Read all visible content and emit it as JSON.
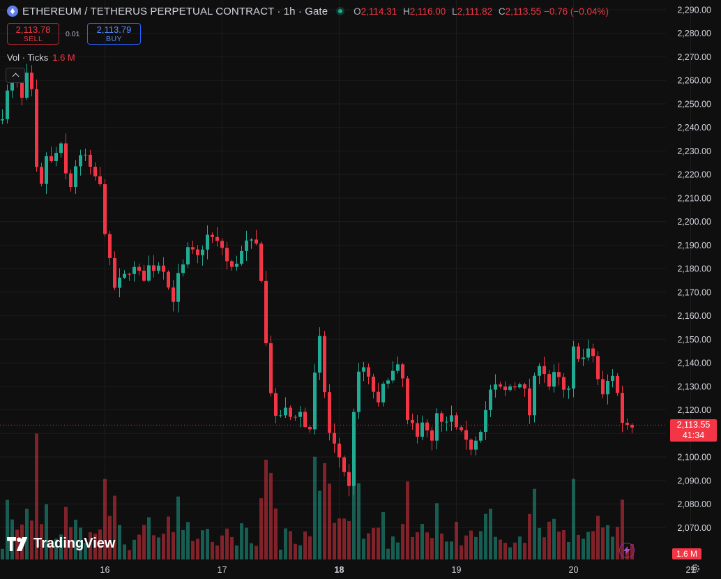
{
  "header": {
    "title": "ETHEREUM / TETHERUS PERPETUAL CONTRACT · 1h · Gate",
    "ohlc": {
      "o_label": "O",
      "o": "2,114.31",
      "h_label": "H",
      "h": "2,116.00",
      "l_label": "L",
      "l": "2,111.82",
      "c_label": "C",
      "c": "2,113.55",
      "change": "−0.76 (−0.04%)"
    }
  },
  "trade": {
    "sell_price": "2,113.78",
    "sell_label": "SELL",
    "spread": "0.01",
    "buy_price": "2,113.79",
    "buy_label": "BUY"
  },
  "volume_legend": {
    "label": "Vol · Ticks",
    "value": "1.6 M"
  },
  "price_scale": {
    "last_price": "2,113.55",
    "countdown": "41:34",
    "volume_tag": "1.6 M"
  },
  "branding": {
    "logo_text": "TradingView"
  },
  "icons": {
    "symbol": "ethereum-icon",
    "market_status": "live-dot-icon",
    "collapse": "chevron-up-icon",
    "logo": "tradingview-logo-icon",
    "quick_action": "lightning-icon",
    "settings": "gear-icon"
  },
  "colors": {
    "background": "#0f0f0f",
    "up": "#22ab94",
    "down": "#f23645",
    "grid": "#1c1c1c",
    "text": "#d1d4dc"
  },
  "chart_data": {
    "type": "candlestick",
    "interval": "1h",
    "y_axis": {
      "range": [
        2060,
        2292
      ],
      "ticks": [
        2070,
        2080,
        2090,
        2100,
        2110,
        2120,
        2130,
        2140,
        2150,
        2160,
        2170,
        2180,
        2190,
        2200,
        2210,
        2220,
        2230,
        2240,
        2250,
        2260,
        2270,
        2280,
        2290
      ],
      "tick_labels": [
        "2,070.00",
        "2,080.00",
        "2,090.00",
        "2,100.00",
        "2,110.00",
        "2,120.00",
        "2,130.00",
        "2,140.00",
        "2,150.00",
        "2,160.00",
        "2,170.00",
        "2,180.00",
        "2,190.00",
        "2,200.00",
        "2,210.00",
        "2,220.00",
        "2,230.00",
        "2,240.00",
        "2,250.00",
        "2,260.00",
        "2,270.00",
        "2,280.00",
        "2,290.00"
      ]
    },
    "x_axis": {
      "tick_labels": [
        "16",
        "17",
        "18",
        "19",
        "20",
        "21"
      ],
      "ticks_at_candle": [
        21,
        45,
        69,
        93,
        117,
        141
      ]
    },
    "last_price": 2113.55,
    "close_path": [
      [
        0,
        2245
      ],
      [
        1,
        2255
      ],
      [
        2,
        2262
      ],
      [
        3,
        2258
      ],
      [
        4,
        2252
      ],
      [
        5,
        2262
      ],
      [
        6,
        2255
      ],
      [
        7,
        2222
      ],
      [
        8,
        2215
      ],
      [
        9,
        2228
      ],
      [
        10,
        2225
      ],
      [
        11,
        2229
      ],
      [
        12,
        2232
      ],
      [
        13,
        2220
      ],
      [
        14,
        2215
      ],
      [
        15,
        2224
      ],
      [
        16,
        2227
      ],
      [
        17,
        2228
      ],
      [
        18,
        2222
      ],
      [
        19,
        2219
      ],
      [
        20,
        2215
      ],
      [
        21,
        2196
      ],
      [
        22,
        2183
      ],
      [
        23,
        2172
      ],
      [
        24,
        2175
      ],
      [
        25,
        2177
      ],
      [
        26,
        2179
      ],
      [
        27,
        2180
      ],
      [
        28,
        2178
      ],
      [
        29,
        2176
      ],
      [
        30,
        2181
      ],
      [
        31,
        2180
      ],
      [
        32,
        2182
      ],
      [
        33,
        2180
      ],
      [
        34,
        2172
      ],
      [
        35,
        2167
      ],
      [
        36,
        2177
      ],
      [
        37,
        2181
      ],
      [
        38,
        2188
      ],
      [
        39,
        2187
      ],
      [
        40,
        2185
      ],
      [
        41,
        2189
      ],
      [
        42,
        2194
      ],
      [
        43,
        2193
      ],
      [
        44,
        2191
      ],
      [
        45,
        2189
      ],
      [
        46,
        2183
      ],
      [
        47,
        2180
      ],
      [
        48,
        2183
      ],
      [
        49,
        2187
      ],
      [
        50,
        2191
      ],
      [
        51,
        2191
      ],
      [
        52,
        2190
      ],
      [
        53,
        2176
      ],
      [
        54,
        2148
      ],
      [
        55,
        2128
      ],
      [
        56,
        2116
      ],
      [
        57,
        2118
      ],
      [
        58,
        2120
      ],
      [
        59,
        2117
      ],
      [
        60,
        2118
      ],
      [
        61,
        2119
      ],
      [
        62,
        2113
      ],
      [
        63,
        2112
      ],
      [
        64,
        2135
      ],
      [
        65,
        2150
      ],
      [
        66,
        2128
      ],
      [
        67,
        2110
      ],
      [
        68,
        2105
      ],
      [
        69,
        2100
      ],
      [
        70,
        2094
      ],
      [
        71,
        2087
      ],
      [
        72,
        2120
      ],
      [
        73,
        2135
      ],
      [
        74,
        2138
      ],
      [
        75,
        2133
      ],
      [
        76,
        2128
      ],
      [
        77,
        2122
      ],
      [
        78,
        2130
      ],
      [
        79,
        2134
      ],
      [
        80,
        2136
      ],
      [
        81,
        2138
      ],
      [
        82,
        2133
      ],
      [
        83,
        2115
      ],
      [
        84,
        2113
      ],
      [
        85,
        2108
      ],
      [
        86,
        2116
      ],
      [
        87,
        2112
      ],
      [
        88,
        2106
      ],
      [
        89,
        2118
      ],
      [
        90,
        2114
      ],
      [
        91,
        2114
      ],
      [
        92,
        2117
      ],
      [
        93,
        2112
      ],
      [
        94,
        2110
      ],
      [
        95,
        2106
      ],
      [
        96,
        2104
      ],
      [
        97,
        2108
      ],
      [
        98,
        2112
      ],
      [
        99,
        2120
      ],
      [
        100,
        2128
      ],
      [
        101,
        2130
      ],
      [
        102,
        2129
      ],
      [
        103,
        2128
      ],
      [
        104,
        2130
      ],
      [
        105,
        2130
      ],
      [
        106,
        2132
      ],
      [
        107,
        2128
      ],
      [
        108,
        2118
      ],
      [
        109,
        2133
      ],
      [
        110,
        2140
      ],
      [
        111,
        2136
      ],
      [
        112,
        2130
      ],
      [
        113,
        2135
      ],
      [
        114,
        2133
      ],
      [
        115,
        2128
      ],
      [
        116,
        2128
      ],
      [
        117,
        2146
      ],
      [
        118,
        2143
      ],
      [
        119,
        2142
      ],
      [
        120,
        2145
      ],
      [
        121,
        2143
      ],
      [
        122,
        2133
      ],
      [
        123,
        2126
      ],
      [
        124,
        2132
      ],
      [
        125,
        2135
      ],
      [
        126,
        2127
      ],
      [
        127,
        2115
      ],
      [
        128,
        2114
      ],
      [
        129,
        2113.55
      ]
    ],
    "candles_total": 130,
    "volume_max_value": 1.6,
    "volume_unit": "M"
  }
}
